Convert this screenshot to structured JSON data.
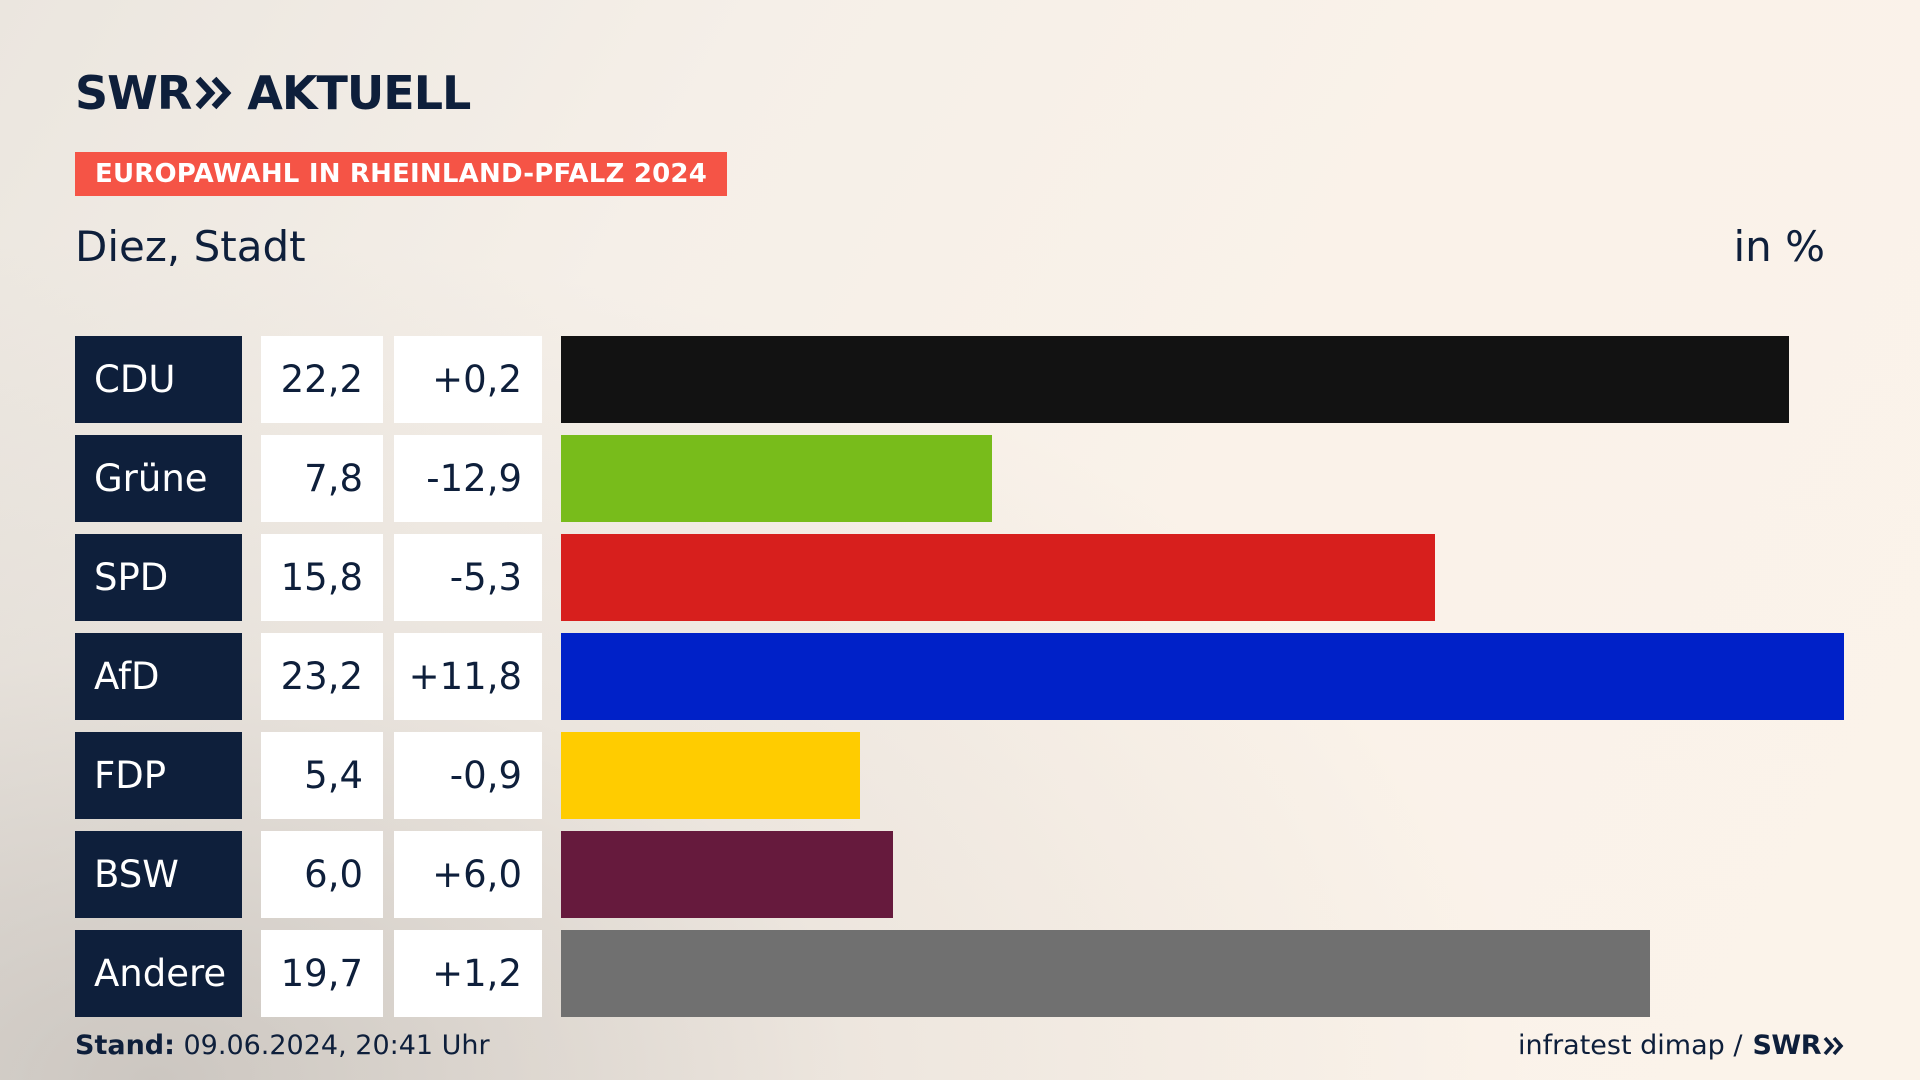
{
  "header": {
    "brand_left": "SWR",
    "brand_right": "AKTUELL",
    "badge": "EUROPAWAHL IN RHEINLAND-PFALZ 2024",
    "subtitle": "Diez, Stadt",
    "unit": "in %"
  },
  "chart_data": {
    "type": "bar",
    "orientation": "horizontal",
    "categories": [
      "CDU",
      "Grüne",
      "SPD",
      "AfD",
      "FDP",
      "BSW",
      "Andere"
    ],
    "values": [
      22.2,
      7.8,
      15.8,
      23.2,
      5.4,
      6.0,
      19.7
    ],
    "value_labels": [
      "22,2",
      "7,8",
      "15,8",
      "23,2",
      "5,4",
      "6,0",
      "19,7"
    ],
    "change_labels": [
      "+0,2",
      "-12,9",
      "-5,3",
      "+11,8",
      "-0,9",
      "+6,0",
      "+1,2"
    ],
    "colors": [
      "#121212",
      "#78bc1b",
      "#d71f1d",
      "#0021c8",
      "#ffcc00",
      "#661a3d",
      "#707070"
    ],
    "xlim": [
      0,
      23.2
    ],
    "grid": false,
    "legend": "none"
  },
  "footer": {
    "stand_label": "Stand:",
    "stand_value": " 09.06.2024, 20:41 Uhr",
    "source": "infratest dimap /",
    "source_brand": "SWR"
  }
}
